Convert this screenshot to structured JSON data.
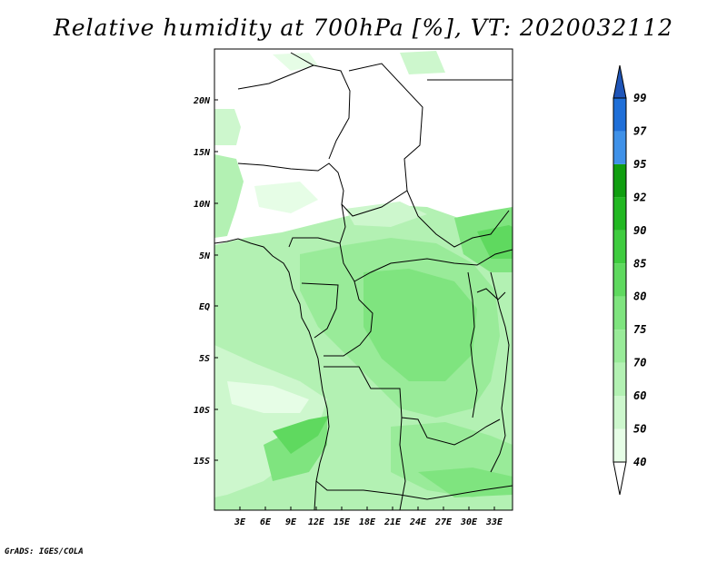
{
  "title": "Relative humidity at 700hPa [%], VT: 2020032112",
  "footer": "GrADS: IGES/COLA",
  "map": {
    "lat_labels": [
      "20N",
      "15N",
      "10N",
      "5N",
      "EQ",
      "5S",
      "10S",
      "15S"
    ],
    "lon_labels": [
      "3E",
      "6E",
      "9E",
      "12E",
      "15E",
      "18E",
      "21E",
      "24E",
      "27E",
      "30E",
      "33E"
    ]
  },
  "colorbar": {
    "levels": [
      "40",
      "50",
      "60",
      "70",
      "75",
      "80",
      "85",
      "90",
      "92",
      "95",
      "97",
      "99"
    ],
    "colors": [
      "#ffffff",
      "#e6fde6",
      "#cdf7cd",
      "#b3f1b3",
      "#99eb99",
      "#7fe47f",
      "#5fd95f",
      "#3fcc3f",
      "#22b822",
      "#109e10",
      "#3f91e8",
      "#1f6fd8",
      "#1f55b8"
    ]
  }
}
